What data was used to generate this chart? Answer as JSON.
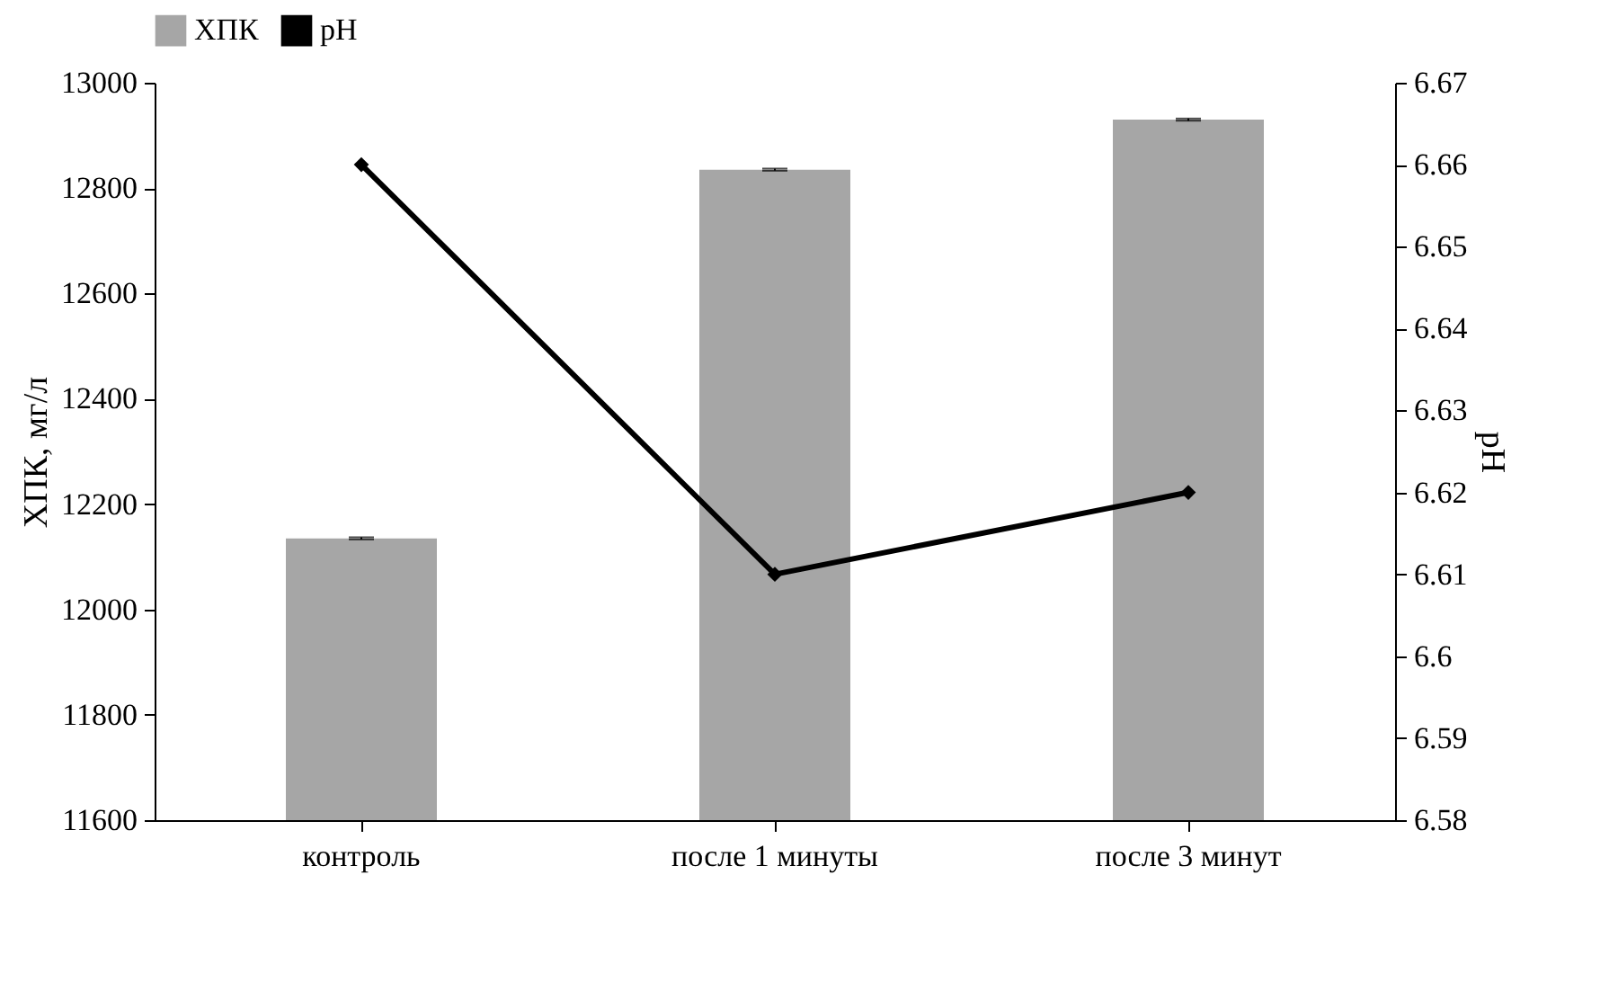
{
  "chart_data": {
    "type": "bar",
    "categories": [
      "контроль",
      "после 1 минуты",
      "после 3 минут"
    ],
    "ylabel": "ХПК, мг/л",
    "y2label": "pH",
    "legend": "top",
    "series": [
      {
        "name": "ХПК",
        "color": "#a6a6a6",
        "values": [
          12135,
          12835,
          12930
        ],
        "errors": [
          2,
          2,
          2
        ]
      },
      {
        "name": "pH",
        "type": "line",
        "axis": "y2",
        "color": "#000000",
        "marker": "diamond",
        "line_style": "solid",
        "values": [
          6.66,
          6.61,
          6.62
        ]
      }
    ],
    "ylim": [
      11600,
      13000
    ],
    "yticks": [
      11600,
      11800,
      12000,
      12200,
      12400,
      12600,
      12800,
      13000
    ],
    "y2lim": [
      6.58,
      6.67
    ],
    "y2ticks": [
      6.58,
      6.59,
      6.6,
      6.61,
      6.62,
      6.63,
      6.64,
      6.65,
      6.66,
      6.67
    ],
    "grid": false
  }
}
